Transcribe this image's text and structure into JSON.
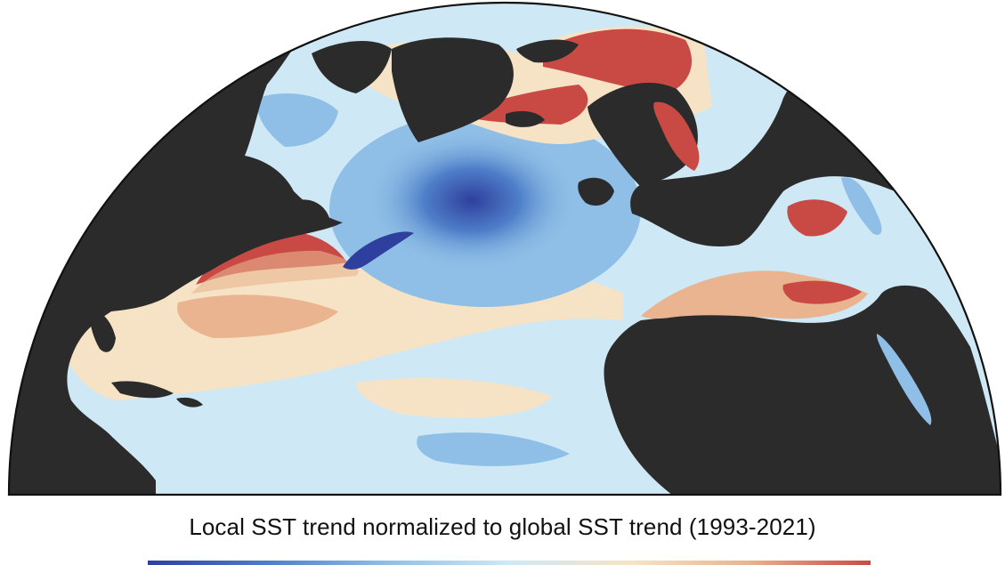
{
  "figure": {
    "colorbar_title": "Local SST trend normalized to global SST trend (1993-2021)"
  },
  "colors": {
    "land": "#2b2b2b",
    "coastline": "#111111",
    "strong_cooling": "#2f3f9e",
    "cooling": "#4f7fc9",
    "mild_cooling": "#8fbfe6",
    "near_global": "#cfe8f5",
    "mild_warming": "#f6e3c5",
    "warming": "#e9b48f",
    "strong_warming": "#c94a45"
  },
  "colorbar": {
    "colors": [
      "#2f3f9e",
      "#4f7fc9",
      "#8fbfe6",
      "#cfe8f5",
      "#f6e3c5",
      "#e9b48f",
      "#c94a45"
    ]
  }
}
